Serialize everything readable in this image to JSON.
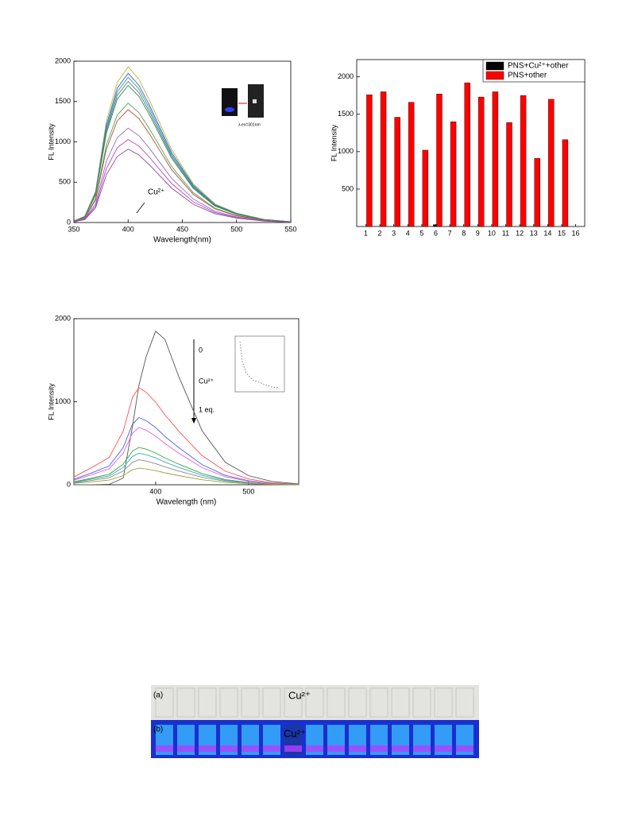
{
  "chart_data": [
    {
      "type": "line",
      "xlabel": "Wavelength(nm)",
      "ylabel": "FL Intensity",
      "x": [
        350,
        360,
        370,
        380,
        390,
        400,
        410,
        420,
        440,
        460,
        480,
        500,
        525,
        550
      ],
      "xlim": [
        350,
        550
      ],
      "xticks": [
        350,
        400,
        450,
        500,
        550
      ],
      "ylim": [
        0,
        2000
      ],
      "yticks": [
        0,
        500,
        1000,
        1500,
        2000
      ],
      "annotations": [
        "Cu²⁺",
        "λ-ex=301nm"
      ],
      "series": [
        {
          "color": "#b5b53a",
          "values": [
            19,
            77,
            386,
            1255,
            1737,
            1930,
            1776,
            1505,
            907,
            483,
            232,
            116,
            39,
            10
          ]
        },
        {
          "color": "#3a5fcd",
          "values": [
            19,
            74,
            370,
            1203,
            1665,
            1850,
            1702,
            1443,
            870,
            463,
            222,
            111,
            37,
            9
          ]
        },
        {
          "color": "#2aa0a0",
          "values": [
            18,
            72,
            360,
            1170,
            1620,
            1800,
            1656,
            1404,
            846,
            450,
            216,
            108,
            36,
            9
          ]
        },
        {
          "color": "#607080",
          "values": [
            18,
            70,
            350,
            1138,
            1575,
            1750,
            1610,
            1365,
            823,
            438,
            210,
            105,
            35,
            9
          ]
        },
        {
          "color": "#2e8b57",
          "values": [
            17,
            68,
            340,
            1105,
            1530,
            1700,
            1564,
            1326,
            799,
            425,
            204,
            102,
            34,
            9
          ]
        },
        {
          "color": "#5aa05a",
          "values": [
            15,
            59,
            296,
            962,
            1332,
            1480,
            1362,
            1154,
            696,
            370,
            178,
            89,
            30,
            7
          ]
        },
        {
          "color": "#b05030",
          "values": [
            14,
            56,
            280,
            910,
            1260,
            1400,
            1288,
            1092,
            658,
            350,
            168,
            84,
            28,
            7
          ]
        },
        {
          "color": "#9070c0",
          "values": [
            12,
            47,
            234,
            761,
            1053,
            1170,
            1076,
            913,
            550,
            293,
            140,
            70,
            23,
            6
          ]
        },
        {
          "color": "#c040c0",
          "values": [
            10,
            41,
            206,
            670,
            927,
            1030,
            948,
            803,
            484,
            258,
            124,
            62,
            21,
            5
          ]
        },
        {
          "color": "#8a4aa0",
          "values": [
            9,
            36,
            182,
            592,
            819,
            910,
            837,
            710,
            428,
            228,
            109,
            55,
            18,
            5
          ]
        }
      ]
    },
    {
      "type": "bar",
      "ylabel": "FL Intensity",
      "categories": [
        1,
        2,
        3,
        4,
        5,
        6,
        7,
        8,
        9,
        10,
        11,
        12,
        13,
        14,
        15,
        16
      ],
      "ylim": [
        0,
        2230
      ],
      "yticks": [
        500,
        1000,
        1500,
        2000
      ],
      "legend": "upper right",
      "series": [
        {
          "name": "PNS+Cu²⁺+other",
          "color": "#000000",
          "values": [
            0,
            0,
            0,
            0,
            0,
            25,
            0,
            0,
            0,
            0,
            0,
            0,
            0,
            0,
            0,
            null
          ]
        },
        {
          "name": "PNS+other",
          "color": "#ff0000",
          "values": [
            1760,
            1800,
            1460,
            1660,
            1020,
            1770,
            1400,
            1920,
            1730,
            1800,
            1390,
            1750,
            910,
            1700,
            1160,
            null
          ]
        }
      ]
    },
    {
      "type": "line",
      "xlabel": "Wavelength (nm)",
      "ylabel": "FL Intensity",
      "x": [
        312,
        330,
        350,
        365,
        375,
        382,
        390,
        400,
        410,
        425,
        450,
        475,
        500,
        525,
        554
      ],
      "xlim": [
        312,
        554
      ],
      "xticks": [
        400,
        500
      ],
      "ylim": [
        0,
        2000
      ],
      "yticks": [
        0,
        1000,
        2000
      ],
      "annotations": [
        "0",
        "Cu²⁺",
        "1 eq."
      ],
      "series": [
        {
          "color": "#555555",
          "values": [
            0,
            0,
            5,
            80,
            700,
            1200,
            1550,
            1850,
            1750,
            1300,
            650,
            270,
            110,
            40,
            10
          ]
        },
        {
          "color": "#ff5050",
          "values": [
            94,
            199,
            328,
            644,
            1053,
            1170,
            1112,
            995,
            842,
            644,
            351,
            164,
            70,
            23,
            6
          ]
        },
        {
          "color": "#5060e0",
          "values": [
            65,
            138,
            227,
            446,
            729,
            810,
            770,
            689,
            583,
            446,
            243,
            113,
            49,
            16,
            4
          ]
        },
        {
          "color": "#e060e0",
          "values": [
            55,
            117,
            193,
            380,
            621,
            690,
            656,
            587,
            497,
            380,
            207,
            97,
            41,
            14,
            3
          ]
        },
        {
          "color": "#40a040",
          "values": [
            36,
            77,
            126,
            248,
            405,
            450,
            428,
            383,
            324,
            248,
            135,
            63,
            27,
            9,
            2
          ]
        },
        {
          "color": "#30b0c0",
          "values": [
            30,
            65,
            106,
            209,
            342,
            380,
            361,
            323,
            274,
            209,
            114,
            53,
            23,
            8,
            2
          ]
        },
        {
          "color": "#888888",
          "values": [
            24,
            51,
            84,
            165,
            270,
            300,
            285,
            255,
            216,
            165,
            90,
            42,
            18,
            6,
            2
          ]
        },
        {
          "color": "#a0a040",
          "values": [
            16,
            34,
            56,
            110,
            180,
            200,
            190,
            170,
            144,
            110,
            60,
            28,
            12,
            4,
            1
          ]
        }
      ]
    }
  ],
  "photo": {
    "labels": [
      "(a)",
      "Cu²⁺",
      "(b)",
      "Cu²⁺"
    ]
  }
}
